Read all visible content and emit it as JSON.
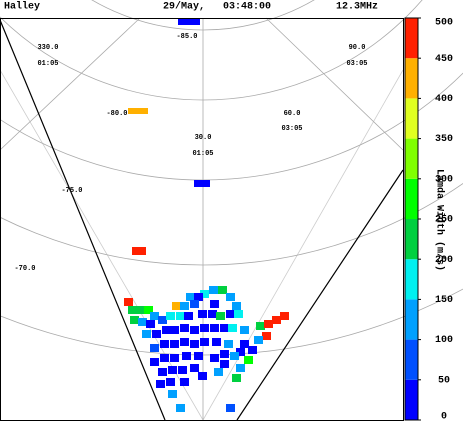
{
  "header": {
    "station": "Halley",
    "time": "29/May,   03:48:00",
    "frequency": "12.3MHz"
  },
  "colorbar": {
    "label": "Lamda Width (m/s)",
    "ticks": [
      0,
      50,
      100,
      150,
      200,
      250,
      300,
      350,
      400,
      450,
      500
    ],
    "colors": [
      "#0000ff",
      "#0050ff",
      "#00a0ff",
      "#00f0f0",
      "#00d040",
      "#00ff00",
      "#80ff00",
      "#e0ff20",
      "#ffb000",
      "#ff2000"
    ]
  },
  "grid_labels": [
    "330.0",
    "01:05",
    "-85.0",
    "90.0",
    "03:05",
    "-80.0",
    "60.0",
    "03:05",
    "30.0",
    "01:05",
    "-75.0",
    "-70.0"
  ],
  "cells": {
    "values": [
      0,
      440,
      20,
      490,
      130,
      200,
      150,
      120,
      30,
      140,
      410,
      140,
      60,
      40,
      130,
      480,
      200,
      230,
      250,
      140,
      230,
      100,
      20,
      60,
      150,
      170,
      20,
      40,
      10,
      220,
      10,
      150,
      120,
      200,
      460,
      500,
      490,
      480,
      130,
      40,
      30,
      120,
      10,
      30,
      10,
      20,
      0,
      10,
      0,
      40,
      150,
      60,
      10,
      20,
      10,
      0,
      20,
      30,
      130,
      0,
      250,
      120,
      20,
      30,
      0,
      10,
      20,
      10,
      40,
      10,
      130,
      200,
      20,
      0,
      10,
      20,
      20,
      30,
      0,
      130,
      140,
      30,
      120,
      60
    ]
  }
}
